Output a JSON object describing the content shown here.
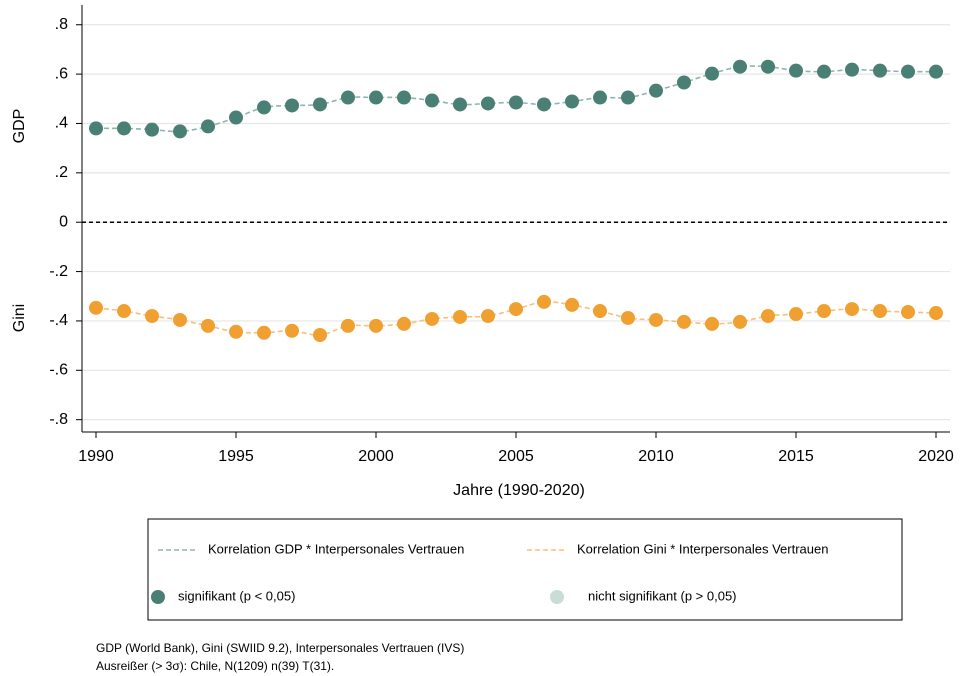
{
  "chart_data": {
    "type": "line",
    "xlabel": "Jahre (1990-2020)",
    "ylabel_top": "GDP",
    "ylabel_bottom": "Gini",
    "x": [
      1990,
      1991,
      1992,
      1993,
      1994,
      1995,
      1996,
      1997,
      1998,
      1999,
      2000,
      2001,
      2002,
      2003,
      2004,
      2005,
      2006,
      2007,
      2008,
      2009,
      2010,
      2011,
      2012,
      2013,
      2014,
      2015,
      2016,
      2017,
      2018,
      2019,
      2020
    ],
    "series": [
      {
        "name": "Korrelation GDP * Interpersonales Vertrauen",
        "color": "#8fb5ad",
        "marker_color": "#4a7f75",
        "values": [
          0.38,
          0.38,
          0.375,
          0.368,
          0.388,
          0.424,
          0.465,
          0.473,
          0.477,
          0.505,
          0.505,
          0.505,
          0.493,
          0.477,
          0.481,
          0.485,
          0.477,
          0.489,
          0.505,
          0.505,
          0.533,
          0.566,
          0.602,
          0.63,
          0.63,
          0.614,
          0.61,
          0.618,
          0.614,
          0.61,
          0.61
        ]
      },
      {
        "name": "Korrelation Gini * Interpersonales Vertrauen",
        "color": "#f6c07a",
        "marker_color": "#f0a030",
        "values": [
          -0.347,
          -0.36,
          -0.38,
          -0.396,
          -0.42,
          -0.444,
          -0.448,
          -0.44,
          -0.457,
          -0.42,
          -0.42,
          -0.412,
          -0.392,
          -0.384,
          -0.38,
          -0.352,
          -0.323,
          -0.335,
          -0.36,
          -0.388,
          -0.396,
          -0.404,
          -0.412,
          -0.404,
          -0.38,
          -0.372,
          -0.36,
          -0.352,
          -0.36,
          -0.364,
          -0.368
        ]
      }
    ],
    "markers": [
      {
        "name": "signifikant (p < 0,05)",
        "color": "#4a7f75"
      },
      {
        "name": "nicht signifikant (p > 0,05)",
        "color": "#c9dcd6"
      }
    ],
    "xlim": [
      1989.5,
      2020.5
    ],
    "xticks": [
      1990,
      1995,
      2000,
      2005,
      2010,
      2015,
      2020
    ],
    "ylim": [
      -0.85,
      0.88
    ],
    "yticks": [
      {
        "value": 0.8,
        "label": ".8"
      },
      {
        "value": 0.6,
        "label": ".6"
      },
      {
        "value": 0.4,
        "label": ".4"
      },
      {
        "value": 0.2,
        "label": ".2"
      },
      0,
      {
        "value": -0.2,
        "label": "-.2"
      },
      {
        "value": -0.4,
        "label": "-.4"
      },
      {
        "value": -0.6,
        "label": "-.6"
      },
      {
        "value": -0.8,
        "label": "-.8"
      }
    ],
    "grid": true,
    "zero_line": true,
    "notes": [
      "GDP (World Bank), Gini (SWIID 9.2), Interpersonales Vertrauen (IVS)",
      "Ausreißer (> 3σ): Chile, N(1209) n(39) T(31)."
    ]
  }
}
